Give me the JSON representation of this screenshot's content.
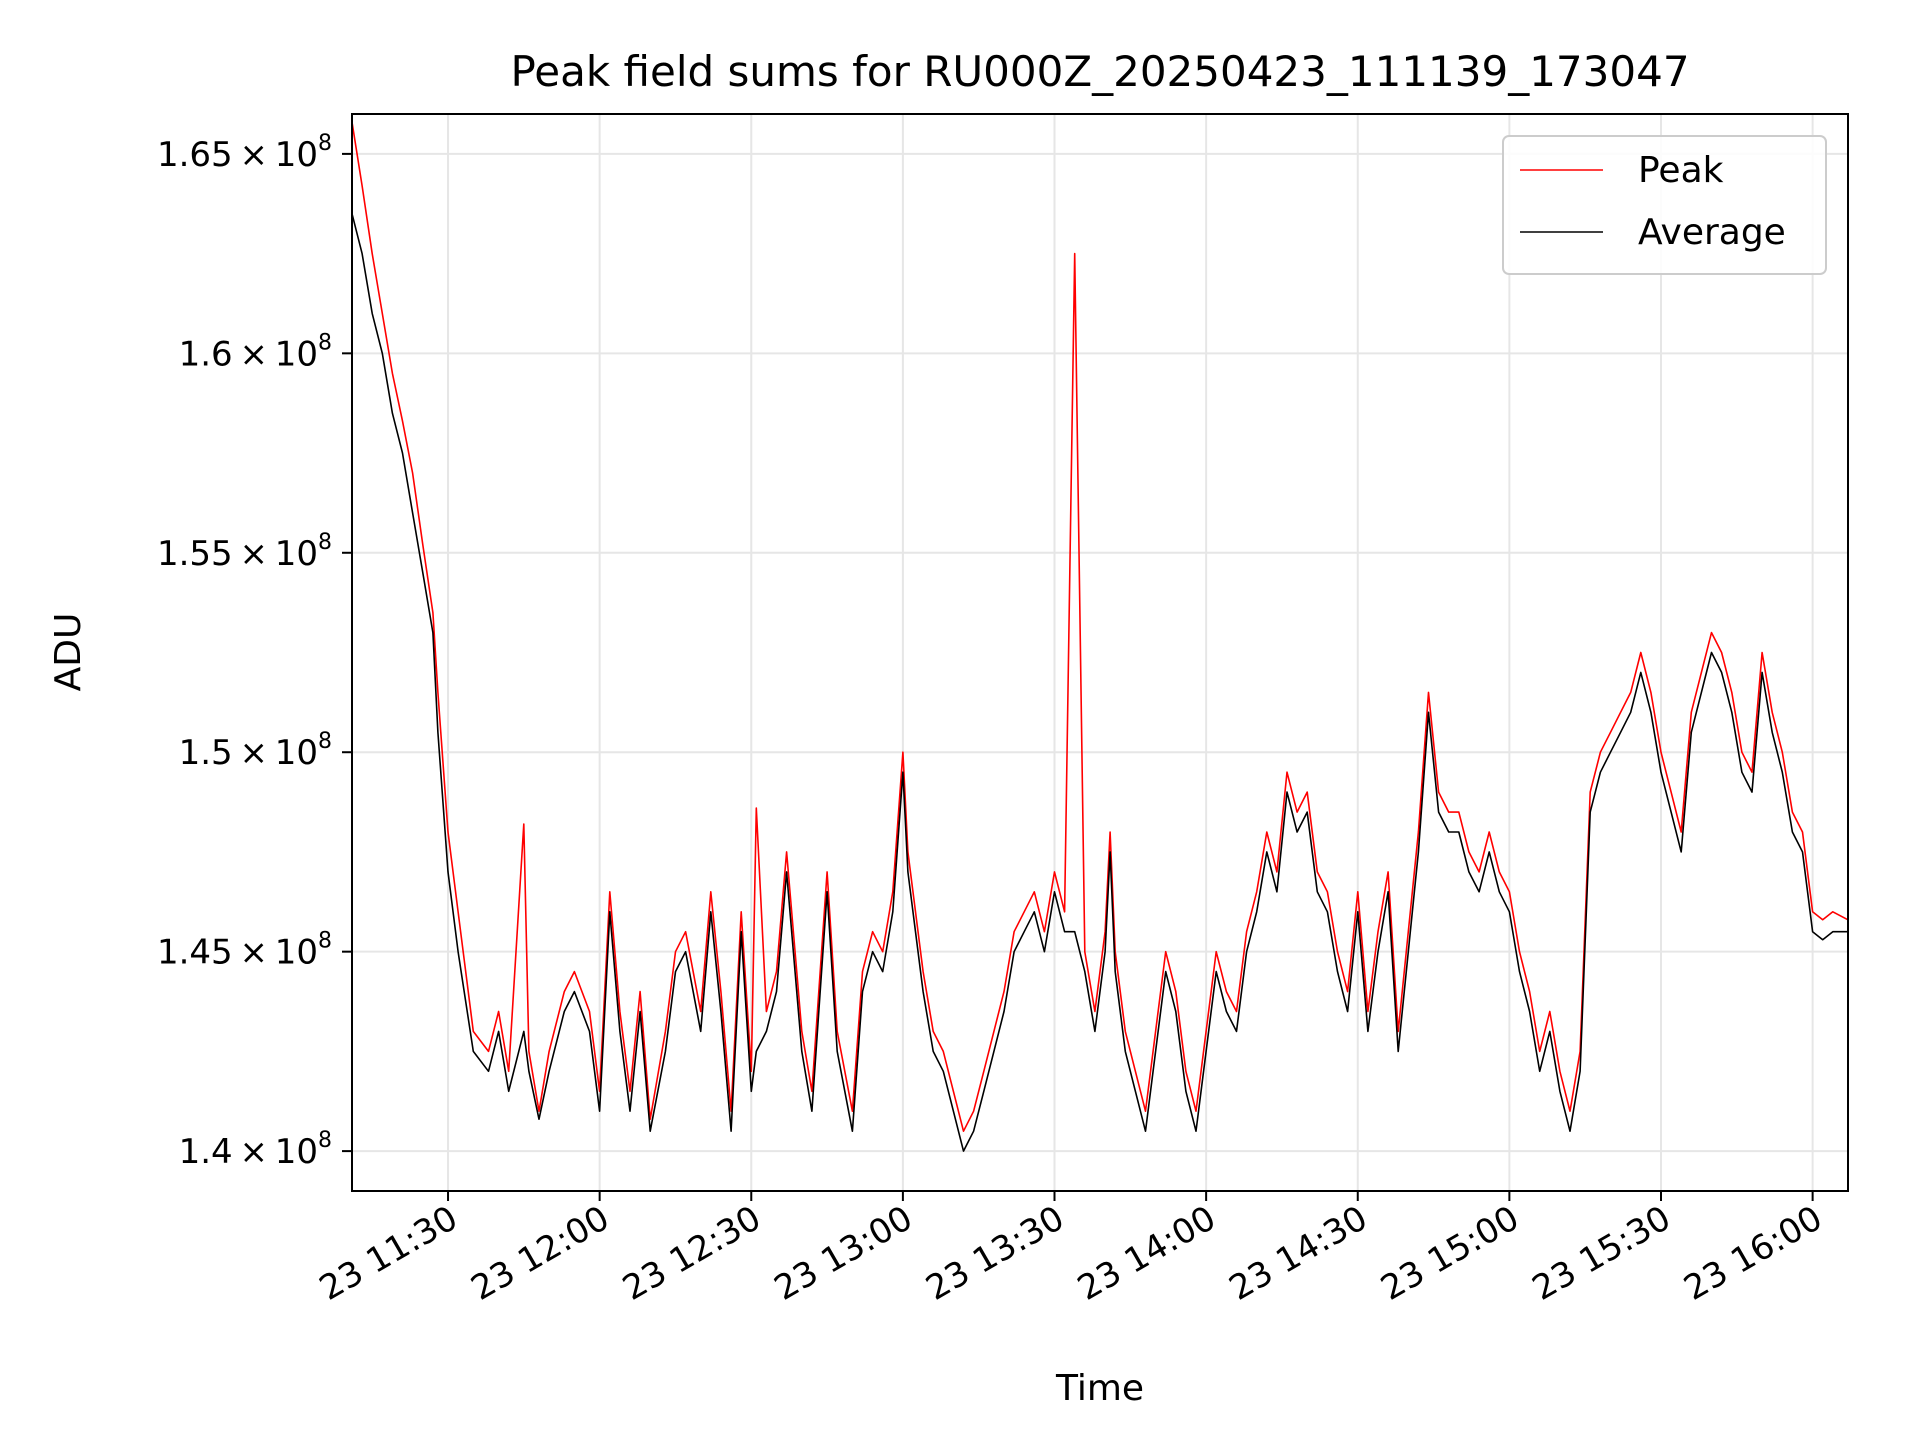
{
  "chart_data": {
    "type": "line",
    "title": "Peak field sums for RU000Z_20250423_111139_173047",
    "xlabel": "Time",
    "ylabel": "ADU",
    "xlim": [
      "11:11",
      "16:07"
    ],
    "ylim": [
      139000000,
      166000000
    ],
    "x_ticks": [
      "23 11:30",
      "23 12:00",
      "23 12:30",
      "23 13:00",
      "23 13:30",
      "23 14:00",
      "23 14:30",
      "23 15:00",
      "23 15:30",
      "23 16:00"
    ],
    "y_ticks": [
      {
        "mant": "1.4",
        "exp": "8"
      },
      {
        "mant": "1.45",
        "exp": "8"
      },
      {
        "mant": "1.5",
        "exp": "8"
      },
      {
        "mant": "1.55",
        "exp": "8"
      },
      {
        "mant": "1.6",
        "exp": "8"
      },
      {
        "mant": "1.65",
        "exp": "8"
      }
    ],
    "grid": true,
    "legend": "top-right",
    "series": [
      {
        "name": "Peak",
        "color": "#ff0000",
        "x": [
          "11:11",
          "11:13",
          "11:15",
          "11:17",
          "11:19",
          "11:21",
          "11:23",
          "11:25",
          "11:27",
          "11:28",
          "11:30",
          "11:32",
          "11:35",
          "11:38",
          "11:40",
          "11:42",
          "11:45",
          "11:46",
          "11:48",
          "11:50",
          "11:53",
          "11:55",
          "11:58",
          "12:00",
          "12:02",
          "12:04",
          "12:06",
          "12:08",
          "12:10",
          "12:13",
          "12:15",
          "12:17",
          "12:20",
          "12:22",
          "12:24",
          "12:26",
          "12:28",
          "12:30",
          "12:31",
          "12:33",
          "12:35",
          "12:37",
          "12:40",
          "12:42",
          "12:45",
          "12:47",
          "12:50",
          "12:52",
          "12:54",
          "12:56",
          "12:58",
          "13:00",
          "13:01",
          "13:04",
          "13:06",
          "13:08",
          "13:10",
          "13:12",
          "13:14",
          "13:16",
          "13:18",
          "13:20",
          "13:22",
          "13:24",
          "13:26",
          "13:28",
          "13:30",
          "13:32",
          "13:34",
          "13:36",
          "13:38",
          "13:40",
          "13:41",
          "13:42",
          "13:44",
          "13:46",
          "13:48",
          "13:50",
          "13:52",
          "13:54",
          "13:56",
          "13:58",
          "14:00",
          "14:02",
          "14:04",
          "14:06",
          "14:08",
          "14:10",
          "14:12",
          "14:14",
          "14:16",
          "14:18",
          "14:20",
          "14:22",
          "14:24",
          "14:26",
          "14:28",
          "14:30",
          "14:32",
          "14:34",
          "14:36",
          "14:38",
          "14:40",
          "14:42",
          "14:44",
          "14:46",
          "14:48",
          "14:50",
          "14:52",
          "14:54",
          "14:56",
          "14:58",
          "15:00",
          "15:02",
          "15:04",
          "15:06",
          "15:08",
          "15:10",
          "15:12",
          "15:14",
          "15:16",
          "15:18",
          "15:20",
          "15:22",
          "15:24",
          "15:26",
          "15:28",
          "15:30",
          "15:32",
          "15:34",
          "15:36",
          "15:38",
          "15:40",
          "15:42",
          "15:44",
          "15:46",
          "15:48",
          "15:50",
          "15:52",
          "15:54",
          "15:56",
          "15:58",
          "16:00",
          "16:02",
          "16:04",
          "16:07"
        ],
        "values": [
          165800000,
          164200000,
          162500000,
          161000000,
          159500000,
          158300000,
          157000000,
          155200000,
          153500000,
          151500000,
          148000000,
          146000000,
          143000000,
          142500000,
          143500000,
          142000000,
          148200000,
          142500000,
          141000000,
          142500000,
          144000000,
          144500000,
          143500000,
          141500000,
          146500000,
          143500000,
          141500000,
          144000000,
          140800000,
          143000000,
          145000000,
          145500000,
          143500000,
          146500000,
          144000000,
          141000000,
          146000000,
          142000000,
          148600000,
          143500000,
          144500000,
          147500000,
          143000000,
          141500000,
          147000000,
          143000000,
          141000000,
          144500000,
          145500000,
          145000000,
          146500000,
          150000000,
          147500000,
          144500000,
          143000000,
          142500000,
          141500000,
          140500000,
          141000000,
          142000000,
          143000000,
          144000000,
          145500000,
          146000000,
          146500000,
          145500000,
          147000000,
          146000000,
          162500000,
          145000000,
          143500000,
          145500000,
          148000000,
          145000000,
          143000000,
          142000000,
          141000000,
          143000000,
          145000000,
          144000000,
          142000000,
          141000000,
          143000000,
          145000000,
          144000000,
          143500000,
          145500000,
          146500000,
          148000000,
          147000000,
          149500000,
          148500000,
          149000000,
          147000000,
          146500000,
          145000000,
          144000000,
          146500000,
          143500000,
          145500000,
          147000000,
          143000000,
          145500000,
          148000000,
          151500000,
          149000000,
          148500000,
          148500000,
          147500000,
          147000000,
          148000000,
          147000000,
          146500000,
          145000000,
          144000000,
          142500000,
          143500000,
          142000000,
          141000000,
          142500000,
          149000000,
          150000000,
          150500000,
          151000000,
          151500000,
          152500000,
          151500000,
          150000000,
          149000000,
          148000000,
          151000000,
          152000000,
          153000000,
          152500000,
          151500000,
          150000000,
          149500000,
          152500000,
          151000000,
          150000000,
          148500000,
          148000000,
          146000000,
          145800000,
          146000000,
          145800000
        ]
      },
      {
        "name": "Average",
        "color": "#000000",
        "x": [
          "11:11",
          "11:13",
          "11:15",
          "11:17",
          "11:19",
          "11:21",
          "11:23",
          "11:25",
          "11:27",
          "11:28",
          "11:30",
          "11:32",
          "11:35",
          "11:38",
          "11:40",
          "11:42",
          "11:45",
          "11:46",
          "11:48",
          "11:50",
          "11:53",
          "11:55",
          "11:58",
          "12:00",
          "12:02",
          "12:04",
          "12:06",
          "12:08",
          "12:10",
          "12:13",
          "12:15",
          "12:17",
          "12:20",
          "12:22",
          "12:24",
          "12:26",
          "12:28",
          "12:30",
          "12:31",
          "12:33",
          "12:35",
          "12:37",
          "12:40",
          "12:42",
          "12:45",
          "12:47",
          "12:50",
          "12:52",
          "12:54",
          "12:56",
          "12:58",
          "13:00",
          "13:01",
          "13:04",
          "13:06",
          "13:08",
          "13:10",
          "13:12",
          "13:14",
          "13:16",
          "13:18",
          "13:20",
          "13:22",
          "13:24",
          "13:26",
          "13:28",
          "13:30",
          "13:32",
          "13:34",
          "13:36",
          "13:38",
          "13:40",
          "13:41",
          "13:42",
          "13:44",
          "13:46",
          "13:48",
          "13:50",
          "13:52",
          "13:54",
          "13:56",
          "13:58",
          "14:00",
          "14:02",
          "14:04",
          "14:06",
          "14:08",
          "14:10",
          "14:12",
          "14:14",
          "14:16",
          "14:18",
          "14:20",
          "14:22",
          "14:24",
          "14:26",
          "14:28",
          "14:30",
          "14:32",
          "14:34",
          "14:36",
          "14:38",
          "14:40",
          "14:42",
          "14:44",
          "14:46",
          "14:48",
          "14:50",
          "14:52",
          "14:54",
          "14:56",
          "14:58",
          "15:00",
          "15:02",
          "15:04",
          "15:06",
          "15:08",
          "15:10",
          "15:12",
          "15:14",
          "15:16",
          "15:18",
          "15:20",
          "15:22",
          "15:24",
          "15:26",
          "15:28",
          "15:30",
          "15:32",
          "15:34",
          "15:36",
          "15:38",
          "15:40",
          "15:42",
          "15:44",
          "15:46",
          "15:48",
          "15:50",
          "15:52",
          "15:54",
          "15:56",
          "15:58",
          "16:00",
          "16:02",
          "16:04",
          "16:07"
        ],
        "values": [
          163500000,
          162500000,
          161000000,
          160000000,
          158500000,
          157500000,
          156000000,
          154500000,
          153000000,
          150500000,
          147000000,
          145000000,
          142500000,
          142000000,
          143000000,
          141500000,
          143000000,
          142000000,
          140800000,
          142000000,
          143500000,
          144000000,
          143000000,
          141000000,
          146000000,
          143000000,
          141000000,
          143500000,
          140500000,
          142500000,
          144500000,
          145000000,
          143000000,
          146000000,
          143500000,
          140500000,
          145500000,
          141500000,
          142500000,
          143000000,
          144000000,
          147000000,
          142500000,
          141000000,
          146500000,
          142500000,
          140500000,
          144000000,
          145000000,
          144500000,
          146000000,
          149500000,
          147000000,
          144000000,
          142500000,
          142000000,
          141000000,
          140000000,
          140500000,
          141500000,
          142500000,
          143500000,
          145000000,
          145500000,
          146000000,
          145000000,
          146500000,
          145500000,
          145500000,
          144500000,
          143000000,
          145000000,
          147500000,
          144500000,
          142500000,
          141500000,
          140500000,
          142500000,
          144500000,
          143500000,
          141500000,
          140500000,
          142500000,
          144500000,
          143500000,
          143000000,
          145000000,
          146000000,
          147500000,
          146500000,
          149000000,
          148000000,
          148500000,
          146500000,
          146000000,
          144500000,
          143500000,
          146000000,
          143000000,
          145000000,
          146500000,
          142500000,
          145000000,
          147500000,
          151000000,
          148500000,
          148000000,
          148000000,
          147000000,
          146500000,
          147500000,
          146500000,
          146000000,
          144500000,
          143500000,
          142000000,
          143000000,
          141500000,
          140500000,
          142000000,
          148500000,
          149500000,
          150000000,
          150500000,
          151000000,
          152000000,
          151000000,
          149500000,
          148500000,
          147500000,
          150500000,
          151500000,
          152500000,
          152000000,
          151000000,
          149500000,
          149000000,
          152000000,
          150500000,
          149500000,
          148000000,
          147500000,
          145500000,
          145300000,
          145500000,
          145500000
        ]
      }
    ]
  }
}
